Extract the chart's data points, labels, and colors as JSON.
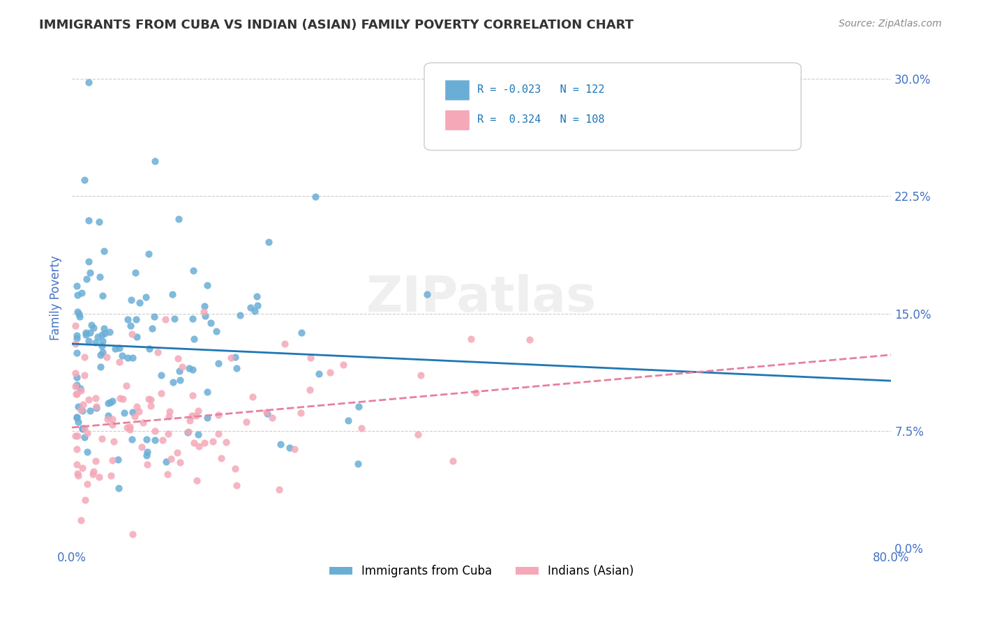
{
  "title": "IMMIGRANTS FROM CUBA VS INDIAN (ASIAN) FAMILY POVERTY CORRELATION CHART",
  "source_text": "Source: ZipAtlas.com",
  "ylabel_ticks": [
    0.0,
    7.5,
    15.0,
    22.5,
    30.0
  ],
  "xlim": [
    0.0,
    80.0
  ],
  "ylim": [
    0.0,
    32.0
  ],
  "cuba_R": -0.023,
  "cuba_N": 122,
  "india_R": 0.324,
  "india_N": 108,
  "cuba_color": "#6aaed6",
  "india_color": "#f4a8b8",
  "cuba_line_color": "#1f77b4",
  "india_line_color": "#e87fa0",
  "legend_label_cuba": "Immigrants from Cuba",
  "legend_label_india": "Indians (Asian)",
  "watermark": "ZIPatlas",
  "background_color": "#ffffff",
  "grid_color": "#cccccc",
  "title_color": "#333333",
  "axis_label_color": "#4472c4",
  "ylabel": "Family Poverty"
}
